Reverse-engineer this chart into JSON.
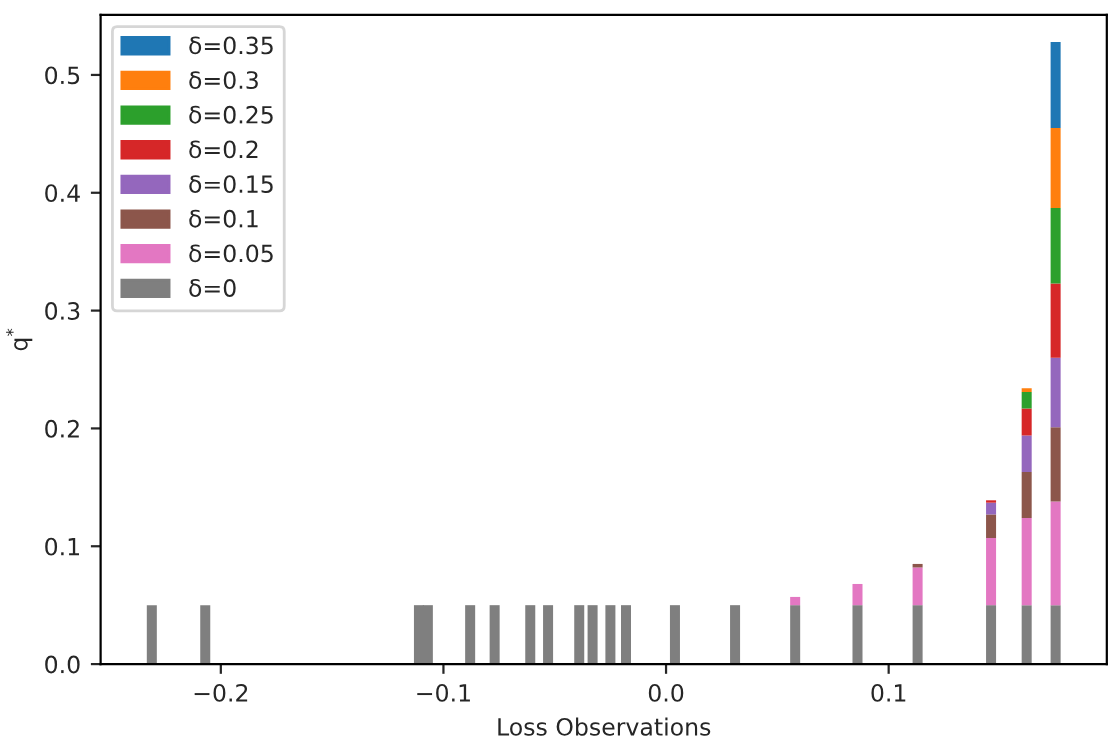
{
  "chart_data": {
    "type": "bar",
    "stacked": true,
    "xlabel": "Loss Observations",
    "ylabel": "q$^{*}$",
    "x": [
      -0.231,
      -0.207,
      -0.111,
      -0.107,
      -0.088,
      -0.077,
      -0.061,
      -0.053,
      -0.039,
      -0.033,
      -0.025,
      -0.018,
      0.004,
      0.031,
      0.058,
      0.086,
      0.113,
      0.146,
      0.162,
      0.175
    ],
    "series": [
      {
        "name": "δ=0",
        "color": "#7f7f7f",
        "values": [
          0.05,
          0.05,
          0.05,
          0.05,
          0.05,
          0.05,
          0.05,
          0.05,
          0.05,
          0.05,
          0.05,
          0.05,
          0.05,
          0.05,
          0.05,
          0.05,
          0.05,
          0.05,
          0.05,
          0.05
        ]
      },
      {
        "name": "δ=0.05",
        "color": "#e377c2",
        "values": [
          null,
          null,
          null,
          null,
          null,
          null,
          null,
          null,
          null,
          null,
          null,
          null,
          null,
          null,
          0.007,
          0.018,
          0.032,
          0.057,
          0.074,
          0.088
        ]
      },
      {
        "name": "δ=0.1",
        "color": "#8c564b",
        "values": [
          null,
          null,
          null,
          null,
          null,
          null,
          null,
          null,
          null,
          null,
          null,
          null,
          null,
          null,
          null,
          null,
          0.003,
          0.02,
          0.039,
          0.063
        ]
      },
      {
        "name": "δ=0.15",
        "color": "#9467bd",
        "values": [
          null,
          null,
          null,
          null,
          null,
          null,
          null,
          null,
          null,
          null,
          null,
          null,
          null,
          null,
          null,
          null,
          null,
          0.01,
          0.031,
          0.059
        ]
      },
      {
        "name": "δ=0.2",
        "color": "#d62728",
        "values": [
          null,
          null,
          null,
          null,
          null,
          null,
          null,
          null,
          null,
          null,
          null,
          null,
          null,
          null,
          null,
          null,
          null,
          0.002,
          0.023,
          0.063
        ]
      },
      {
        "name": "δ=0.25",
        "color": "#2ca02c",
        "values": [
          null,
          null,
          null,
          null,
          null,
          null,
          null,
          null,
          null,
          null,
          null,
          null,
          null,
          null,
          null,
          null,
          null,
          null,
          0.014,
          0.064
        ]
      },
      {
        "name": "δ=0.3",
        "color": "#ff7f0e",
        "values": [
          null,
          null,
          null,
          null,
          null,
          null,
          null,
          null,
          null,
          null,
          null,
          null,
          null,
          null,
          null,
          null,
          null,
          null,
          0.003,
          0.068
        ]
      },
      {
        "name": "δ=0.35",
        "color": "#1f77b4",
        "values": [
          null,
          null,
          null,
          null,
          null,
          null,
          null,
          null,
          null,
          null,
          null,
          null,
          null,
          null,
          null,
          null,
          null,
          null,
          null,
          0.073
        ]
      }
    ],
    "xlim": [
      -0.254,
      0.198
    ],
    "xticks": [
      {
        "value": -0.2,
        "label": "−0.2"
      },
      {
        "value": -0.1,
        "label": "−0.1"
      },
      {
        "value": 0.0,
        "label": "0.0"
      },
      {
        "value": 0.1,
        "label": "0.1"
      }
    ],
    "ylim": [
      0,
      0.551
    ],
    "yticks": [
      {
        "value": 0,
        "label": "0.0"
      },
      {
        "value": 0.1,
        "label": "0.1"
      },
      {
        "value": 0.2,
        "label": "0.2"
      },
      {
        "value": 0.3,
        "label": "0.3"
      },
      {
        "value": 0.4,
        "label": "0.4"
      },
      {
        "value": 0.5,
        "label": "0.5"
      }
    ],
    "grid": false,
    "legend": "top left"
  }
}
